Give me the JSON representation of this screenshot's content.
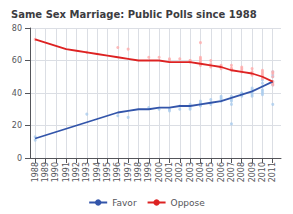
{
  "chart_data": {
    "type": "line",
    "title": "Same Sex Marriage: Public Polls since 1988",
    "xlim": [
      1987.5,
      2011.8
    ],
    "ylim": [
      0,
      80
    ],
    "xticks": [
      1988,
      1989,
      1990,
      1991,
      1992,
      1993,
      1994,
      1995,
      1996,
      1997,
      1998,
      1999,
      2000,
      2001,
      2002,
      2003,
      2004,
      2005,
      2006,
      2007,
      2008,
      2009,
      2010,
      2011
    ],
    "yticks": [
      0,
      20,
      40,
      60,
      80
    ],
    "grid": true,
    "legend": "bottom",
    "series": [
      {
        "type": "scatter",
        "color": "#AACCEE",
        "x": [
          1988,
          1988,
          1993,
          1996,
          1997,
          1999,
          2000,
          2001,
          2001,
          2002,
          2002,
          2003,
          2003,
          2003,
          2004,
          2004,
          2004,
          2004,
          2004,
          2005,
          2005,
          2005,
          2006,
          2006,
          2006,
          2006,
          2007,
          2007,
          2007,
          2007,
          2007,
          2008,
          2008,
          2008,
          2008,
          2009,
          2009,
          2009,
          2009,
          2009,
          2010,
          2010,
          2010,
          2010,
          2010,
          2010,
          2010,
          2011,
          2011,
          2011,
          2011,
          2011,
          2011
        ],
        "values": [
          13,
          11,
          27,
          26,
          25,
          31,
          30,
          30,
          29,
          30,
          32,
          31,
          30,
          33,
          33,
          34,
          32,
          33,
          35,
          36,
          33,
          34,
          35,
          36,
          38,
          37,
          36,
          33,
          35,
          21,
          38,
          39,
          40,
          40,
          38,
          40,
          42,
          38,
          43,
          39,
          42,
          44,
          46,
          48,
          40,
          39,
          41,
          47,
          50,
          45,
          53,
          51,
          33
        ]
      },
      {
        "type": "scatter",
        "color": "#FFAAAA",
        "x": [
          1988,
          1993,
          1996,
          1997,
          1999,
          2000,
          2001,
          2001,
          2002,
          2003,
          2003,
          2003,
          2004,
          2004,
          2004,
          2004,
          2004,
          2004,
          2005,
          2005,
          2005,
          2006,
          2006,
          2006,
          2006,
          2007,
          2007,
          2007,
          2007,
          2008,
          2008,
          2008,
          2008,
          2009,
          2009,
          2009,
          2009,
          2010,
          2010,
          2010,
          2010,
          2010,
          2010,
          2011,
          2011,
          2011,
          2011,
          2011,
          2011
        ],
        "values": [
          73,
          65,
          68,
          67,
          62,
          62,
          61,
          60,
          61,
          60,
          59,
          60,
          61,
          60,
          59,
          62,
          57,
          71,
          58,
          56,
          60,
          56,
          55,
          57,
          56,
          57,
          55,
          54,
          55,
          55,
          53,
          56,
          54,
          53,
          51,
          55,
          52,
          52,
          50,
          53,
          54,
          49,
          51,
          46,
          45,
          47,
          50,
          52,
          53
        ]
      },
      {
        "type": "line",
        "name": "Favor",
        "color": "#3355AA",
        "x": [
          1988,
          1989,
          1990,
          1991,
          1992,
          1993,
          1994,
          1995,
          1996,
          1997,
          1998,
          1999,
          2000,
          2001,
          2002,
          2003,
          2004,
          2005,
          2006,
          2007,
          2008,
          2009,
          2010,
          2011
        ],
        "values": [
          12,
          14,
          16,
          18,
          20,
          22,
          24,
          26,
          28,
          29,
          30,
          30,
          31,
          31,
          32,
          32,
          33,
          34,
          35,
          37,
          39,
          41,
          44,
          47
        ]
      },
      {
        "type": "line",
        "name": "Oppose",
        "color": "#DD2222",
        "x": [
          1988,
          1989,
          1990,
          1991,
          1992,
          1993,
          1994,
          1995,
          1996,
          1997,
          1998,
          1999,
          2000,
          2001,
          2002,
          2003,
          2004,
          2005,
          2006,
          2007,
          2008,
          2009,
          2010,
          2011
        ],
        "values": [
          73,
          71,
          69,
          67,
          66,
          65,
          64,
          63,
          62,
          61,
          60,
          60,
          60,
          59,
          59,
          59,
          58,
          57,
          56,
          54,
          53,
          52,
          50,
          47
        ]
      }
    ]
  }
}
